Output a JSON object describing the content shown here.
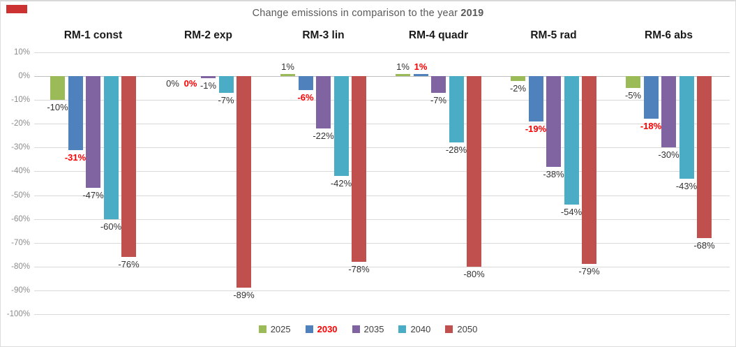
{
  "title": {
    "prefix": "Change emissions in comparison to the year ",
    "year_bold": "2019"
  },
  "marker_color": "#cc3232",
  "chart_data": {
    "type": "bar",
    "title": "Change emissions in comparison to the year 2019",
    "categories": [
      "RM-1 const",
      "RM-2 exp",
      "RM-3 lin",
      "RM-4 quadr",
      "RM-5 rad",
      "RM-6 abs"
    ],
    "series": [
      {
        "name": "2025",
        "color": "#9bbb59",
        "highlight": false,
        "values": [
          -10,
          0,
          1,
          1,
          -2,
          -5
        ]
      },
      {
        "name": "2030",
        "color": "#4f81bd",
        "highlight": true,
        "values": [
          -31,
          0,
          -6,
          1,
          -19,
          -18
        ]
      },
      {
        "name": "2035",
        "color": "#8064a2",
        "highlight": false,
        "values": [
          -47,
          -1,
          -22,
          -7,
          -38,
          -30
        ]
      },
      {
        "name": "2040",
        "color": "#4bacc6",
        "highlight": false,
        "values": [
          -60,
          -7,
          -42,
          -28,
          -54,
          -43
        ]
      },
      {
        "name": "2050",
        "color": "#c0504d",
        "highlight": false,
        "values": [
          -76,
          -89,
          -78,
          -80,
          -79,
          -68
        ]
      }
    ],
    "data_labels": [
      [
        "-10%",
        "0%",
        "1%",
        "1%",
        "-2%",
        "-5%"
      ],
      [
        "-31%",
        "0%",
        "-6%",
        "1%",
        "-19%",
        "-18%"
      ],
      [
        "-47%",
        "-1%",
        "-22%",
        "-7%",
        "-38%",
        "-30%"
      ],
      [
        "-60%",
        "-7%",
        "-42%",
        "-28%",
        "-54%",
        "-43%"
      ],
      [
        "-76%",
        "-89%",
        "-78%",
        "-80%",
        "-79%",
        "-68%"
      ]
    ],
    "highlight_label_color": "#ff0000",
    "ylabel": "",
    "xlabel": "",
    "ylim": [
      -100,
      10
    ],
    "yticks": [
      "10%",
      "0%",
      "-10%",
      "-20%",
      "-30%",
      "-40%",
      "-50%",
      "-60%",
      "-70%",
      "-80%",
      "-90%",
      "-100%"
    ],
    "ytick_values": [
      10,
      0,
      -10,
      -20,
      -30,
      -40,
      -50,
      -60,
      -70,
      -80,
      -90,
      -100
    ],
    "grid": true,
    "legend_position": "bottom"
  }
}
